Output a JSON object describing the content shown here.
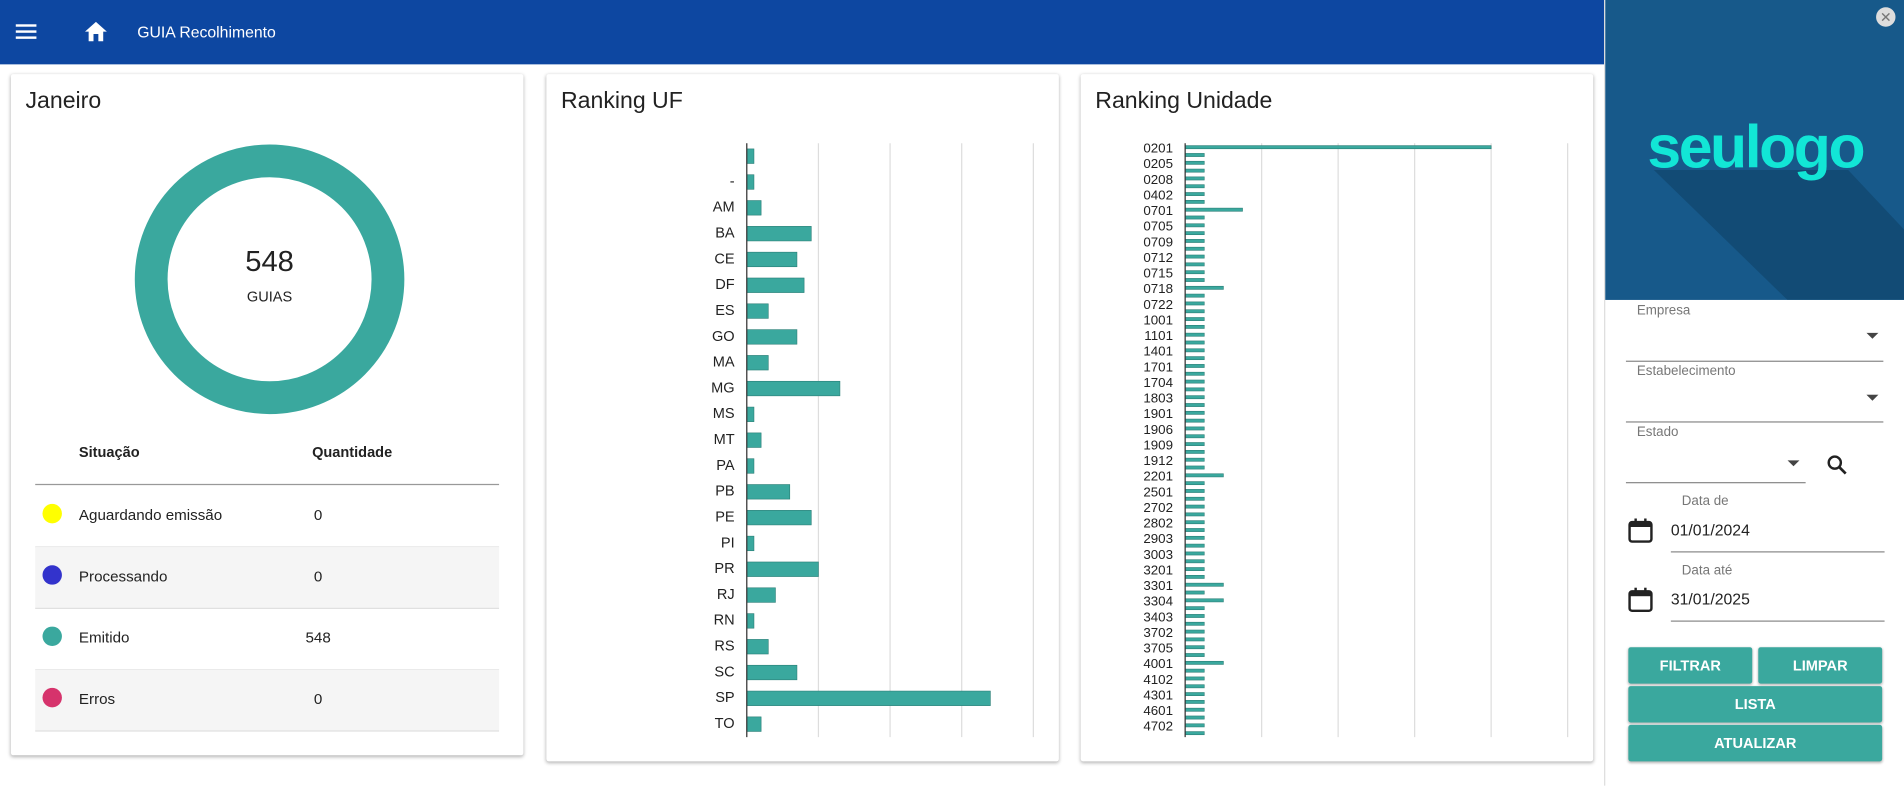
{
  "header": {
    "title": "GUIA Recolhimento"
  },
  "chart_data": [
    {
      "type": "donut",
      "title": "Janeiro",
      "total": 548,
      "total_label": "GUIAS",
      "table_headers": [
        "Situação",
        "Quantidade"
      ],
      "categories": [
        "Aguardando emissão",
        "Processando",
        "Emitido",
        "Erros"
      ],
      "values": [
        0,
        0,
        548,
        0
      ],
      "colors": [
        "#ffff00",
        "#3333cc",
        "#3aa89e",
        "#d6336c"
      ]
    },
    {
      "type": "hbar",
      "title": "Ranking UF",
      "categories": [
        null,
        "-",
        "AM",
        "BA",
        "CE",
        "DF",
        "ES",
        "GO",
        "MA",
        "MG",
        "MS",
        "MT",
        "PA",
        "PB",
        "PE",
        "PI",
        "PR",
        "RJ",
        "RN",
        "RS",
        "SC",
        "SP",
        "TO"
      ],
      "values": [
        1,
        1,
        2,
        9,
        7,
        8,
        3,
        7,
        3,
        13,
        1,
        2,
        1,
        6,
        9,
        1,
        10,
        4,
        1,
        3,
        7,
        34,
        2
      ],
      "color": "#3aa89e",
      "xlim": [
        0,
        40
      ],
      "xticks": [
        0,
        10,
        20,
        30,
        40
      ],
      "grid": true
    },
    {
      "type": "hbar",
      "title": "Ranking Unidade",
      "categories": [
        "0201",
        null,
        "0205",
        null,
        "0208",
        null,
        "0402",
        null,
        "0701",
        null,
        "0705",
        null,
        "0709",
        null,
        "0712",
        null,
        "0715",
        null,
        "0718",
        null,
        "0722",
        null,
        "1001",
        null,
        "1101",
        null,
        "1401",
        null,
        "1701",
        null,
        "1704",
        null,
        "1803",
        null,
        "1901",
        null,
        "1906",
        null,
        "1909",
        null,
        "1912",
        null,
        "2201",
        null,
        "2501",
        null,
        "2702",
        null,
        "2802",
        null,
        "2903",
        null,
        "3003",
        null,
        "3201",
        null,
        "3301",
        null,
        "3304",
        null,
        "3403",
        null,
        "3702",
        null,
        "3705",
        null,
        "4001",
        null,
        "4102",
        null,
        "4301",
        null,
        "4601",
        null,
        "4702",
        null
      ],
      "values": [
        16,
        1,
        1,
        1,
        1,
        1,
        1,
        1,
        3,
        1,
        1,
        1,
        1,
        1,
        1,
        1,
        1,
        1,
        2,
        1,
        1,
        1,
        1,
        1,
        1,
        1,
        1,
        1,
        1,
        1,
        1,
        1,
        1,
        1,
        1,
        1,
        1,
        1,
        1,
        1,
        1,
        1,
        2,
        1,
        1,
        1,
        1,
        1,
        1,
        1,
        1,
        1,
        1,
        1,
        1,
        1,
        2,
        1,
        2,
        1,
        1,
        1,
        1,
        1,
        1,
        1,
        2,
        1,
        1,
        1,
        1,
        1,
        1,
        1,
        1,
        1
      ],
      "color": "#3aa89e",
      "xlim": [
        0,
        20
      ],
      "xticks": [
        0,
        4,
        8,
        12,
        16,
        20
      ],
      "grid": true
    }
  ],
  "sidebar": {
    "logo": "seulogo",
    "fields": [
      {
        "label": "Empresa"
      },
      {
        "label": "Estabelecimento"
      },
      {
        "label": "Estado"
      },
      {
        "label": "Data de",
        "value": "01/01/2024"
      },
      {
        "label": "Data até",
        "value": "31/01/2025"
      }
    ],
    "buttons": [
      "FILTRAR",
      "LIMPAR",
      "LISTA",
      "ATUALIZAR"
    ]
  }
}
